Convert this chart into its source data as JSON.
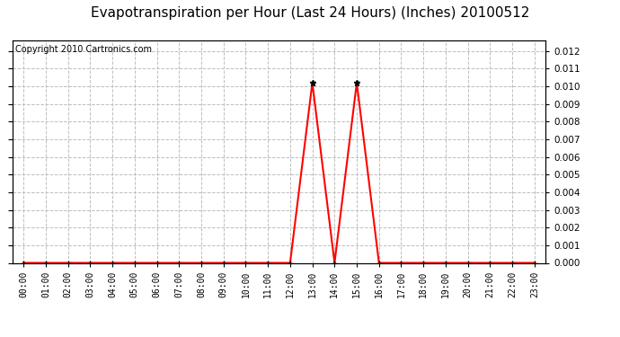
{
  "title": "Evapotranspiration per Hour (Last 24 Hours) (Inches) 20100512",
  "copyright": "Copyright 2010 Cartronics.com",
  "hours": [
    "00:00",
    "01:00",
    "02:00",
    "03:00",
    "04:00",
    "05:00",
    "06:00",
    "07:00",
    "08:00",
    "09:00",
    "10:00",
    "11:00",
    "12:00",
    "13:00",
    "14:00",
    "15:00",
    "16:00",
    "17:00",
    "18:00",
    "19:00",
    "20:00",
    "21:00",
    "22:00",
    "23:00"
  ],
  "values": [
    0.0,
    0.0,
    0.0,
    0.0,
    0.0,
    0.0,
    0.0,
    0.0,
    0.0,
    0.0,
    0.0,
    0.0,
    0.0,
    0.0102,
    0.0,
    0.0102,
    0.0,
    0.0,
    0.0,
    0.0,
    0.0,
    0.0,
    0.0,
    0.0
  ],
  "line_color": "#ff0000",
  "marker_color": "#000000",
  "marker_size": 4,
  "peak_marker_size": 5,
  "grid_color": "#bebebe",
  "background_color": "#ffffff",
  "ylim": [
    0.0,
    0.0126
  ],
  "yticks": [
    0.0,
    0.001,
    0.002,
    0.003,
    0.004,
    0.005,
    0.006,
    0.007,
    0.008,
    0.009,
    0.01,
    0.011,
    0.012
  ],
  "title_fontsize": 11,
  "copyright_fontsize": 7,
  "tick_fontsize": 7,
  "ytick_fontsize": 7.5,
  "linewidth": 1.5
}
